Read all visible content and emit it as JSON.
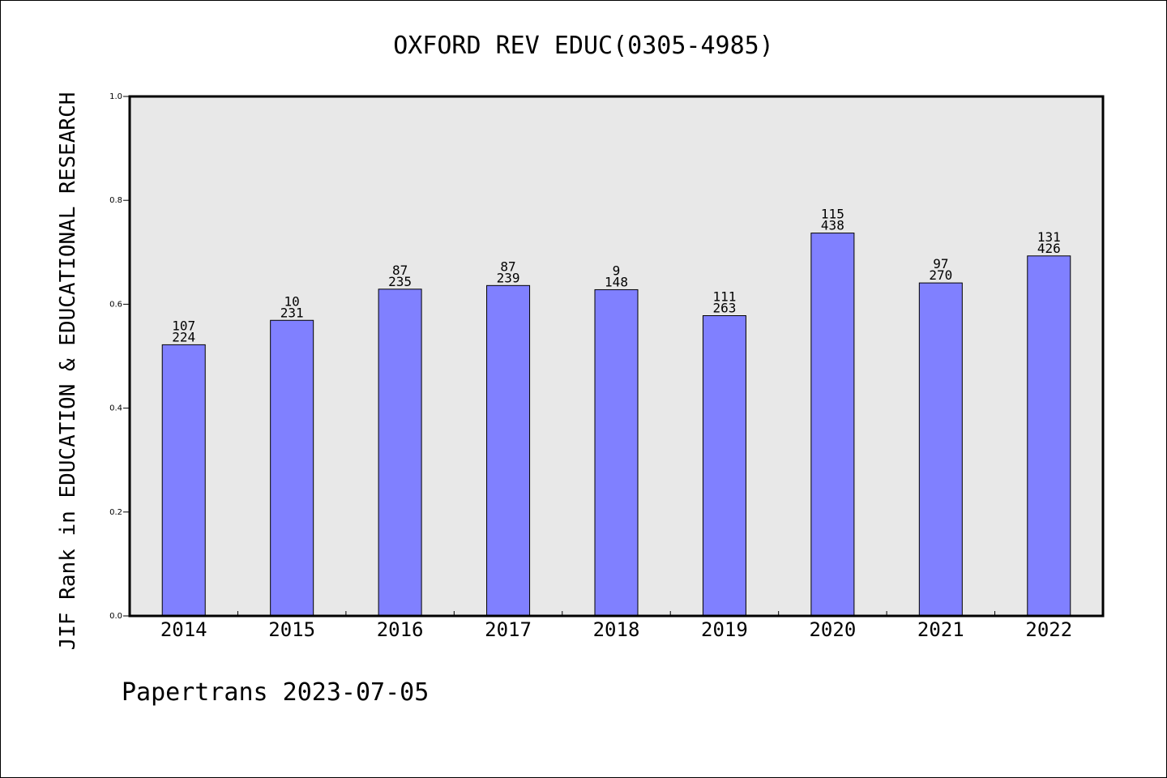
{
  "chart_data": {
    "type": "bar",
    "title": "OXFORD REV EDUC(0305-4985)",
    "ylabel": "JIF Rank in EDUCATION & EDUCATIONAL RESEARCH",
    "xlabel": "",
    "ylim": [
      0,
      1.0
    ],
    "yticks": [
      "0.0",
      "0.2",
      "0.4",
      "0.6",
      "0.8",
      "1.0"
    ],
    "categories": [
      "2014",
      "2015",
      "2016",
      "2017",
      "2018",
      "2019",
      "2020",
      "2021",
      "2022"
    ],
    "values": [
      0.522,
      0.569,
      0.629,
      0.636,
      0.628,
      0.578,
      0.737,
      0.641,
      0.693
    ],
    "labels_top": [
      "107",
      "10",
      "87",
      "87",
      "9",
      "111",
      "115",
      "97",
      "131"
    ],
    "labels_bottom": [
      "224",
      "231",
      "235",
      "239",
      "148",
      "263",
      "438",
      "270",
      "426"
    ],
    "bar_color": "#8080ff",
    "plot_bg": "#e8e8e8",
    "grid": false
  },
  "footer": "Papertrans 2023-07-05"
}
